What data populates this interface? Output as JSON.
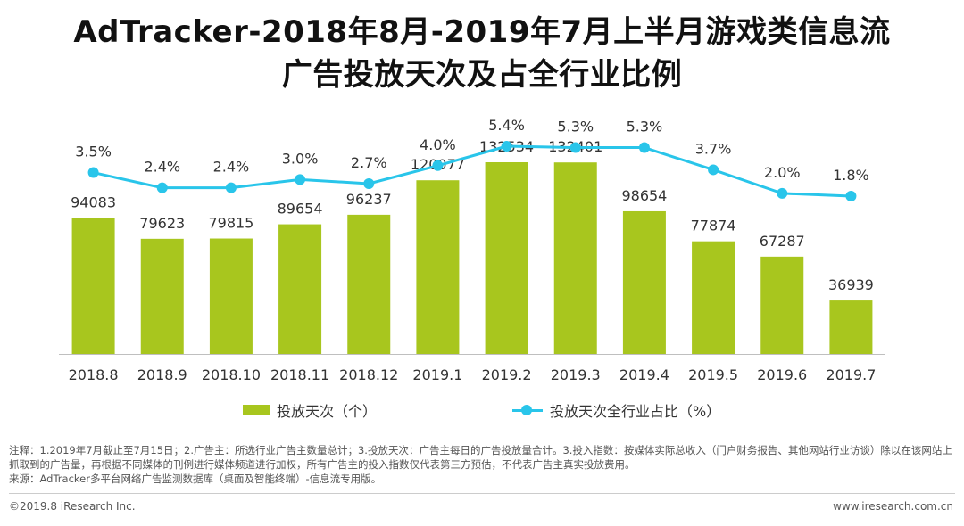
{
  "title_lines": [
    "AdTracker-2018年8月-2019年7月上半月游戏类信息流",
    "广告投放天次及占全行业比例"
  ],
  "chart_data": {
    "type": "bar",
    "categories": [
      "2018.8",
      "2018.9",
      "2018.10",
      "2018.11",
      "2018.12",
      "2019.1",
      "2019.2",
      "2019.3",
      "2019.4",
      "2019.5",
      "2019.6",
      "2019.7"
    ],
    "series": [
      {
        "name": "投放天次（个）",
        "type": "bar",
        "values": [
          94083,
          79623,
          79815,
          89654,
          96237,
          120077,
          132534,
          132401,
          98654,
          77874,
          67287,
          36939
        ],
        "labels": [
          "94083",
          "79623",
          "79815",
          "89654",
          "96237",
          "120077",
          "132534",
          "132401",
          "98654",
          "77874",
          "67287",
          "36939"
        ],
        "color": "#a8c61e"
      },
      {
        "name": "投放天次全行业占比（%）",
        "type": "line",
        "values": [
          3.5,
          2.4,
          2.4,
          3.0,
          2.7,
          4.0,
          5.4,
          5.3,
          5.3,
          3.7,
          2.0,
          1.8
        ],
        "labels": [
          "3.5%",
          "2.4%",
          "2.4%",
          "3.0%",
          "2.7%",
          "4.0%",
          "5.4%",
          "5.3%",
          "5.3%",
          "3.7%",
          "2.0%",
          "1.8%"
        ],
        "color": "#29c5ea"
      }
    ],
    "legend_position": "bottom",
    "grid": false
  },
  "notes": [
    "注释：1.2019年7月截止至7月15日；2.广告主：所选行业广告主数量总计；3.投放天次：广告主每日的广告投放量合计。3.投入指数：按媒体实际总收入（门户财务报告、其他网站行业访谈）除以在该网站上抓取到的广告量，再根据不同媒体的刊例进行媒体频道进行加权，所有广告主的投入指数仅代表第三方预估，不代表广告主真实投放费用。",
    "来源：AdTracker多平台网络广告监测数据库（桌面及智能终端）-信息流专用版。"
  ],
  "footer": {
    "copyright": "©2019.8 iResearch Inc.",
    "website": "www.iresearch.com.cn"
  }
}
